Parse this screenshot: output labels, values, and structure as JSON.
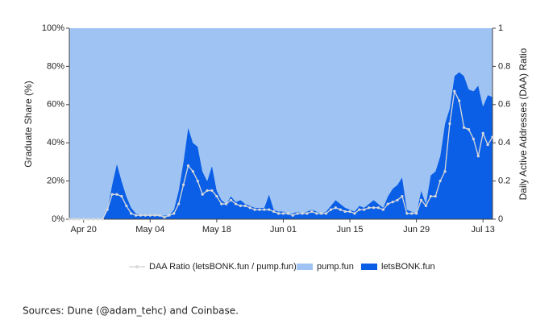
{
  "chart_data": {
    "type": "stacked_area_line",
    "y_label": "Graduate Share (%)",
    "y2_label": "Daily Active Addresses (DAA) Ratio",
    "source": "Sources: Dune (@adam_tehc) and Coinbase.",
    "categories": [
      null,
      null,
      null,
      "Apr 20",
      null,
      null,
      null,
      null,
      null,
      null,
      null,
      null,
      null,
      null,
      null,
      null,
      null,
      "May 04",
      null,
      null,
      null,
      null,
      null,
      null,
      null,
      null,
      null,
      null,
      null,
      null,
      null,
      "May 18",
      null,
      null,
      null,
      null,
      null,
      null,
      null,
      null,
      null,
      null,
      null,
      null,
      null,
      "Jun 01",
      null,
      null,
      null,
      null,
      null,
      null,
      null,
      null,
      null,
      null,
      null,
      null,
      null,
      "Jun 15",
      null,
      null,
      null,
      null,
      null,
      null,
      null,
      null,
      null,
      null,
      null,
      null,
      null,
      "Jun 29",
      null,
      null,
      null,
      null,
      null,
      null,
      null,
      null,
      null,
      null,
      null,
      null,
      null,
      "Jul 13",
      null,
      null
    ],
    "series": [
      {
        "name": "letsBONK.fun",
        "color": "#0b5fe6",
        "values": [
          0,
          0,
          0,
          0,
          0,
          0,
          0,
          0,
          5,
          18,
          29,
          20,
          12,
          6,
          3,
          2,
          2,
          2,
          2,
          1.5,
          2,
          2,
          5,
          15,
          30,
          48,
          40,
          38,
          25,
          20,
          28,
          15,
          10,
          8,
          12,
          9,
          10,
          8,
          7,
          6,
          6,
          6,
          13,
          5,
          4,
          4,
          3,
          3,
          4,
          3,
          4,
          5,
          4,
          3,
          4,
          7,
          10,
          8,
          6,
          5,
          4,
          7,
          6,
          8,
          10,
          8,
          6,
          12,
          16,
          18,
          22,
          5,
          4,
          3,
          15,
          8,
          23,
          25,
          33,
          50,
          58,
          75,
          77,
          75,
          68,
          67,
          70,
          59,
          65,
          64
        ]
      },
      {
        "name": "pump.fun",
        "color": "#9fc4f4",
        "values": [
          100,
          100,
          100,
          100,
          100,
          100,
          100,
          100,
          95,
          82,
          71,
          80,
          88,
          94,
          97,
          98,
          98,
          98,
          98,
          98.5,
          98,
          98,
          95,
          85,
          70,
          52,
          60,
          62,
          75,
          80,
          72,
          85,
          90,
          92,
          88,
          91,
          90,
          92,
          93,
          94,
          94,
          94,
          87,
          95,
          96,
          96,
          97,
          97,
          96,
          97,
          96,
          95,
          96,
          97,
          96,
          93,
          90,
          92,
          94,
          95,
          96,
          93,
          94,
          92,
          90,
          92,
          94,
          88,
          84,
          82,
          78,
          95,
          96,
          97,
          85,
          92,
          77,
          75,
          67,
          50,
          42,
          25,
          23,
          25,
          32,
          33,
          30,
          41,
          35,
          36
        ]
      },
      {
        "name": "DAA Ratio (letsBONK.fun / pump.fun)",
        "color": "#d9d9d9",
        "axis": "y2",
        "values": [
          0,
          0,
          0,
          0,
          0,
          0,
          0,
          0,
          0.05,
          0.13,
          0.13,
          0.12,
          0.07,
          0.03,
          0.02,
          0.02,
          0.02,
          0.02,
          0.02,
          0.02,
          0.01,
          0.02,
          0.03,
          0.08,
          0.18,
          0.28,
          0.25,
          0.2,
          0.13,
          0.15,
          0.15,
          0.12,
          0.08,
          0.08,
          0.1,
          0.08,
          0.07,
          0.07,
          0.06,
          0.05,
          0.05,
          0.05,
          0.05,
          0.04,
          0.03,
          0.03,
          0.03,
          0.02,
          0.03,
          0.03,
          0.03,
          0.04,
          0.03,
          0.03,
          0.03,
          0.05,
          0.06,
          0.05,
          0.04,
          0.04,
          0.03,
          0.05,
          0.05,
          0.06,
          0.06,
          0.06,
          0.05,
          0.08,
          0.09,
          0.1,
          0.12,
          0.03,
          0.03,
          0.03,
          0.1,
          0.07,
          0.12,
          0.12,
          0.2,
          0.25,
          0.5,
          0.67,
          0.62,
          0.48,
          0.47,
          0.42,
          0.33,
          0.45,
          0.39,
          0.43
        ]
      }
    ],
    "ylim": [
      0,
      100
    ],
    "yticks": [
      {
        "value": 0,
        "label": "0%"
      },
      {
        "value": 20,
        "label": "20%"
      },
      {
        "value": 40,
        "label": "40%"
      },
      {
        "value": 60,
        "label": "60%"
      },
      {
        "value": 80,
        "label": "80%"
      },
      {
        "value": 100,
        "label": "100%"
      }
    ],
    "y2lim": [
      0,
      1
    ],
    "y2ticks": [
      0,
      0.2,
      0.4,
      0.6,
      0.8,
      1
    ],
    "legend": "bottom"
  }
}
